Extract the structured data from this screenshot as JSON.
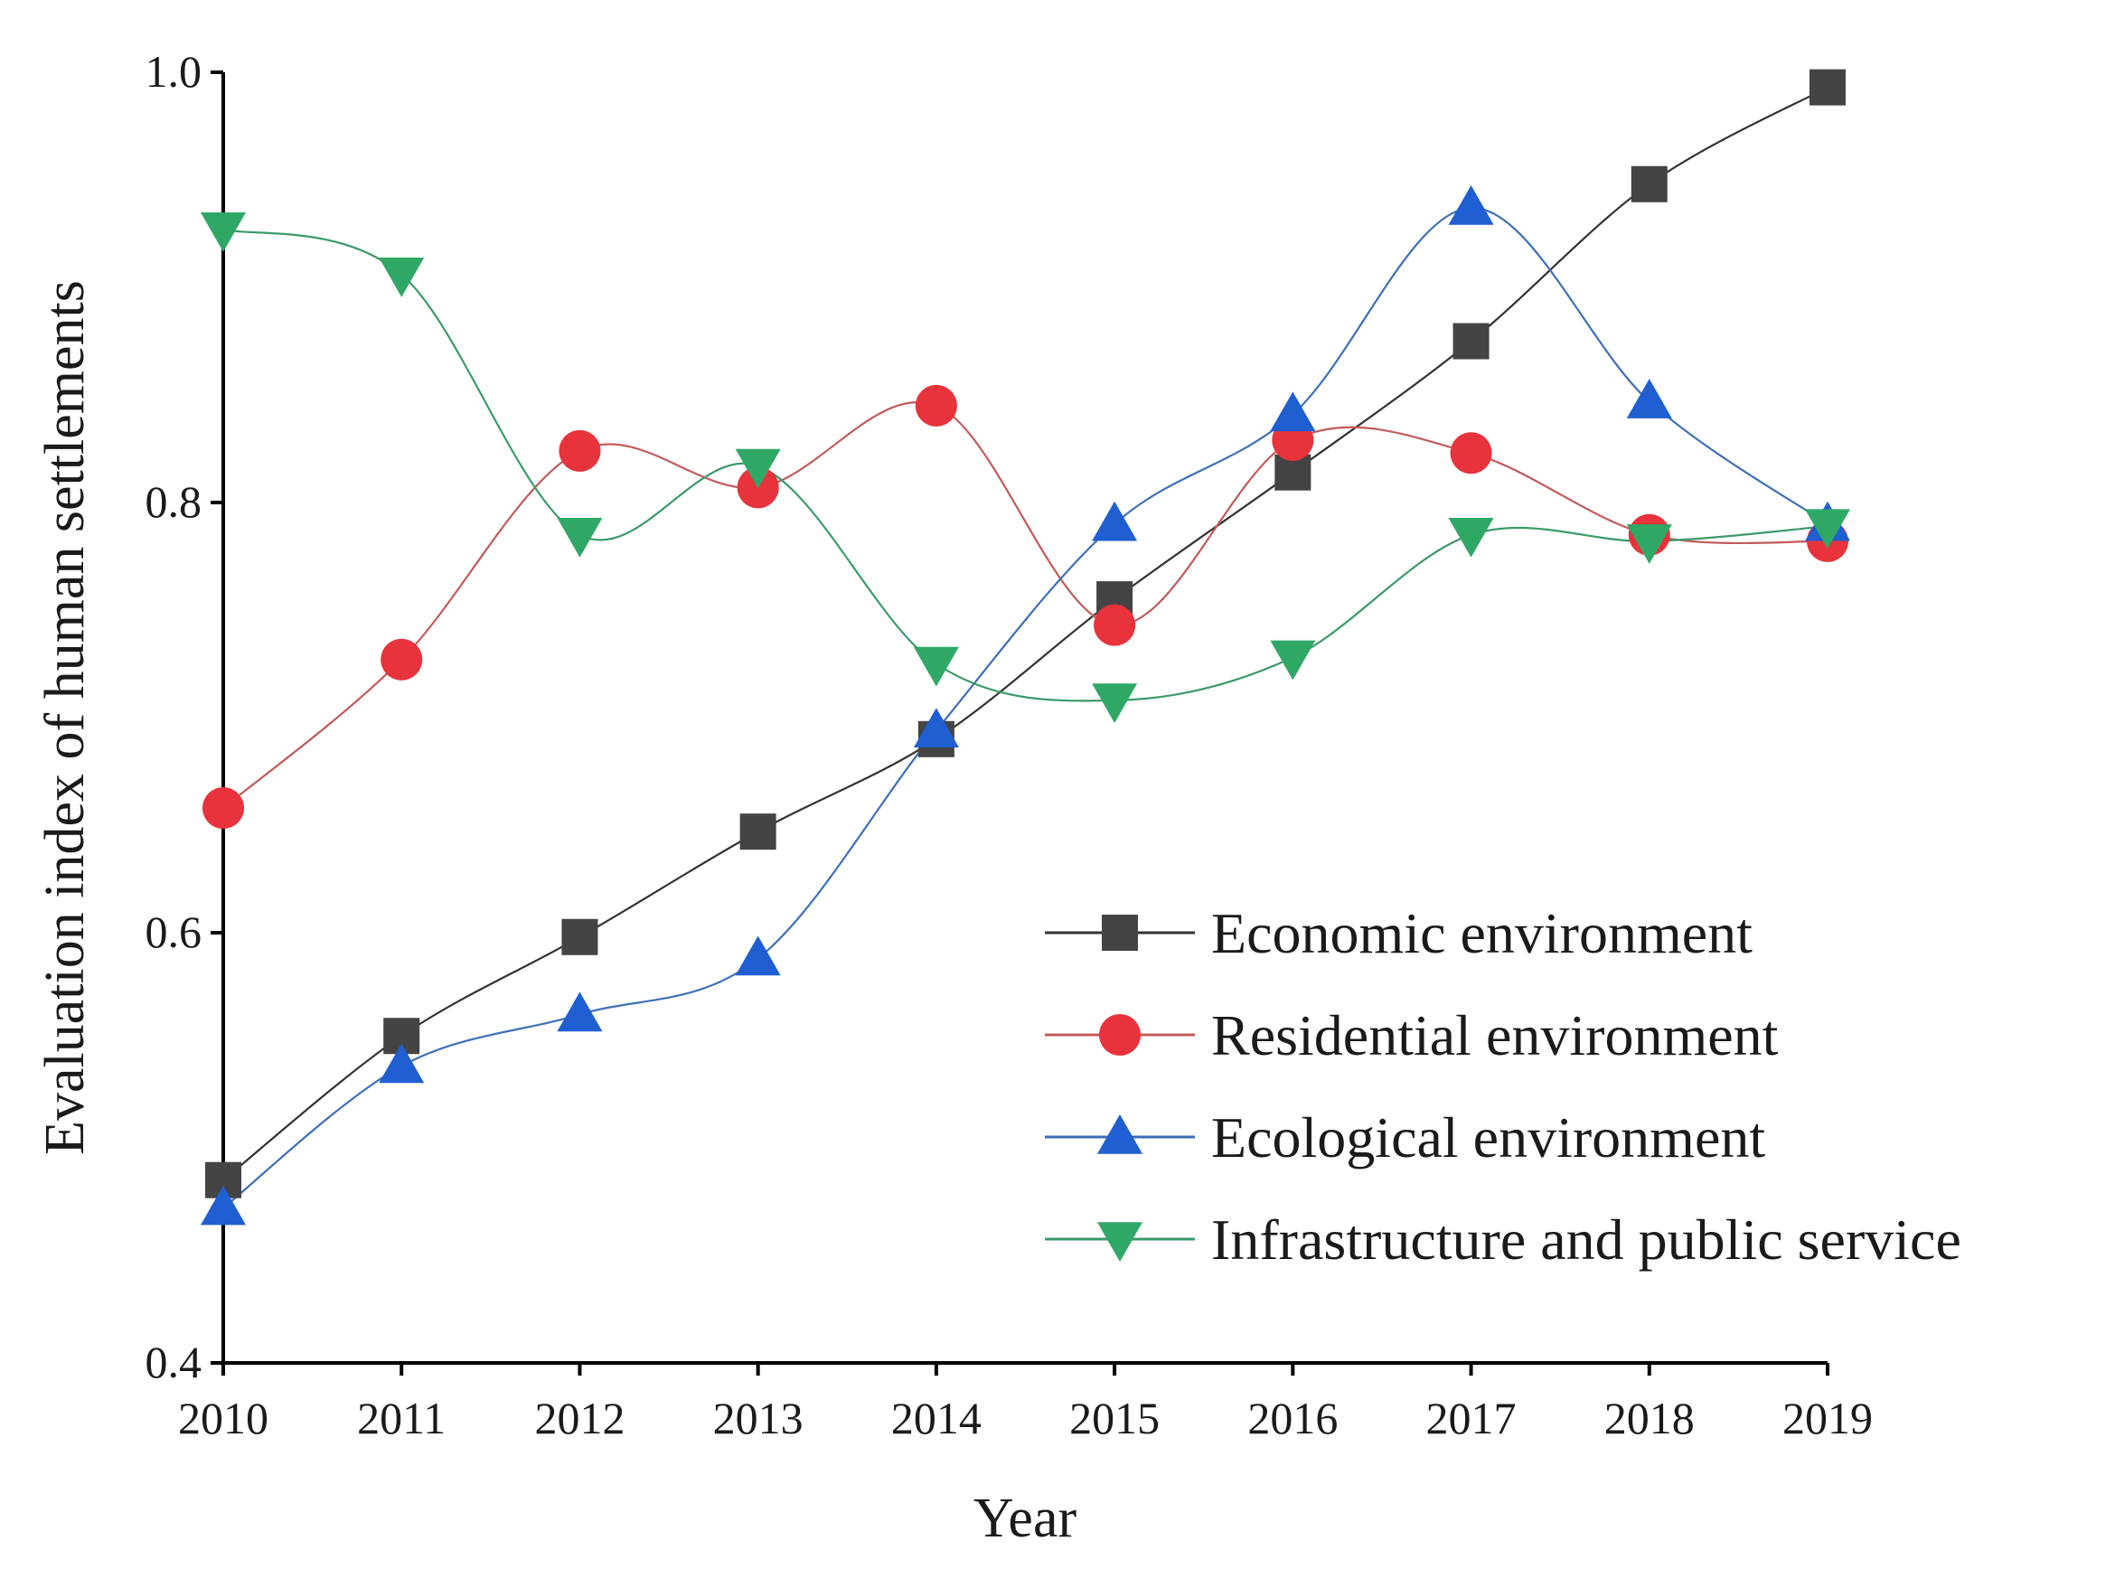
{
  "chart_data": {
    "type": "line",
    "title": "",
    "xlabel": "Year",
    "ylabel": "Evaluation index of human settlements",
    "categories": [
      "2010",
      "2011",
      "2012",
      "2013",
      "2014",
      "2015",
      "2016",
      "2017",
      "2018",
      "2019"
    ],
    "ylim": [
      0.4,
      1.0
    ],
    "yticks": [
      "0.4",
      "0.6",
      "0.8",
      "1.0"
    ],
    "grid": false,
    "smooth": true,
    "legend_position": "center-right",
    "series": [
      {
        "name": "Economic environment",
        "marker": "square",
        "color": "#444444",
        "line_color": "#333333",
        "values": [
          0.485,
          0.552,
          0.598,
          0.647,
          0.69,
          0.755,
          0.814,
          0.875,
          0.948,
          0.993
        ]
      },
      {
        "name": "Residential environment",
        "marker": "circle",
        "color": "#e8333c",
        "line_color": "#c25a5a",
        "values": [
          0.658,
          0.727,
          0.824,
          0.807,
          0.845,
          0.743,
          0.829,
          0.823,
          0.785,
          0.782
        ]
      },
      {
        "name": "Ecological environment",
        "marker": "triangle-up",
        "color": "#1f5fd1",
        "line_color": "#3d6fb8",
        "values": [
          0.472,
          0.538,
          0.562,
          0.588,
          0.694,
          0.79,
          0.841,
          0.937,
          0.847,
          0.79
        ]
      },
      {
        "name": "Infrastructure and public service",
        "marker": "triangle-down",
        "color": "#2fa866",
        "line_color": "#3a9a6a",
        "values": [
          0.927,
          0.906,
          0.785,
          0.817,
          0.725,
          0.708,
          0.728,
          0.785,
          0.782,
          0.789
        ]
      }
    ]
  }
}
